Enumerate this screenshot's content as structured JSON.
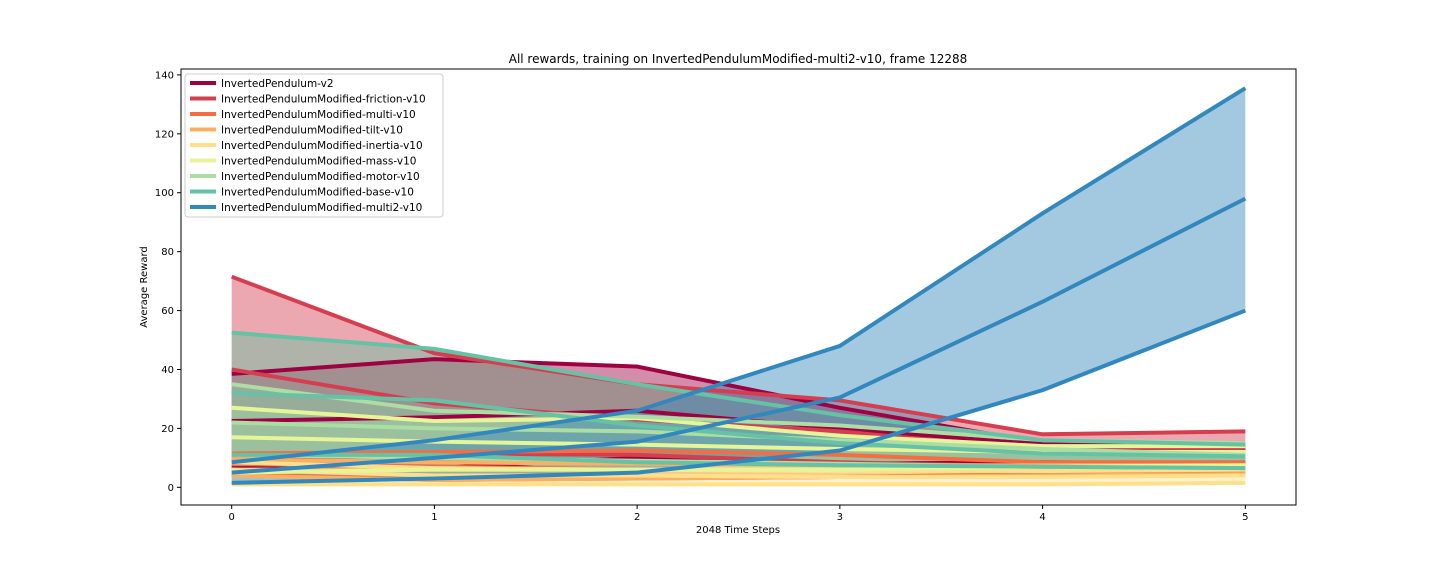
{
  "chart_data": {
    "type": "line",
    "title": "All rewards, training on InvertedPendulumModified-multi2-v10, frame 12288",
    "xlabel": "2048 Time Steps",
    "ylabel": "Average Reward",
    "x": [
      0,
      1,
      2,
      3,
      4,
      5
    ],
    "xlim": [
      -0.25,
      5.25
    ],
    "ylim": [
      -6,
      142
    ],
    "xticks": [
      "0",
      "1",
      "2",
      "3",
      "4",
      "5"
    ],
    "yticks": [
      "0",
      "20",
      "40",
      "60",
      "80",
      "100",
      "120",
      "140"
    ],
    "grid": false,
    "legend_position": "upper-left",
    "series": [
      {
        "name": "InvertedPendulum-v2",
        "color": "#9e0142",
        "mean": [
          22.5,
          23.8,
          26.0,
          20.0,
          14.5,
          13.5
        ],
        "upper": [
          38.5,
          43.5,
          41.0,
          27.0,
          15.0,
          14.0
        ],
        "lower": [
          6.5,
          6.5,
          10.0,
          8.0,
          8.5,
          8.0
        ]
      },
      {
        "name": "InvertedPendulumModified-friction-v10",
        "color": "#d53e4f",
        "mean": [
          40.0,
          28.5,
          23.0,
          19.0,
          12.5,
          13.0
        ],
        "upper": [
          71.5,
          45.5,
          35.0,
          29.5,
          18.0,
          19.0
        ],
        "lower": [
          8.5,
          11.5,
          11.0,
          8.5,
          7.0,
          6.5
        ]
      },
      {
        "name": "InvertedPendulumModified-multi-v10",
        "color": "#f46d43",
        "mean": [
          8.0,
          7.0,
          6.0,
          6.0,
          6.5,
          6.5
        ],
        "upper": [
          11.5,
          12.0,
          12.5,
          11.0,
          8.5,
          8.5
        ],
        "lower": [
          4.5,
          2.5,
          3.0,
          3.5,
          4.5,
          5.0
        ]
      },
      {
        "name": "InvertedPendulumModified-tilt-v10",
        "color": "#fdae61",
        "mean": [
          6.0,
          6.0,
          6.0,
          6.0,
          6.0,
          6.0
        ],
        "upper": [
          9.5,
          8.5,
          8.0,
          7.5,
          7.5,
          7.5
        ],
        "lower": [
          4.0,
          2.5,
          3.0,
          3.5,
          4.0,
          4.5
        ]
      },
      {
        "name": "InvertedPendulumModified-inertia-v10",
        "color": "#fee08b",
        "mean": [
          6.0,
          4.0,
          4.0,
          3.5,
          3.5,
          4.0
        ],
        "upper": [
          8.5,
          6.5,
          6.0,
          5.5,
          5.5,
          6.0
        ],
        "lower": [
          1.0,
          1.0,
          1.0,
          1.0,
          1.0,
          1.5
        ]
      },
      {
        "name": "InvertedPendulumModified-mass-v10",
        "color": "#e6f598",
        "mean": [
          17.0,
          15.5,
          14.5,
          13.0,
          12.0,
          12.0
        ],
        "upper": [
          27.0,
          22.5,
          23.5,
          17.5,
          14.0,
          14.0
        ],
        "lower": [
          5.0,
          6.0,
          6.0,
          6.0,
          7.0,
          7.5
        ]
      },
      {
        "name": "InvertedPendulumModified-motor-v10",
        "color": "#abdda4",
        "mean": [
          22.0,
          20.0,
          19.0,
          16.0,
          13.0,
          11.0
        ],
        "upper": [
          35.0,
          26.0,
          24.0,
          21.0,
          16.0,
          15.0
        ],
        "lower": [
          11.0,
          10.0,
          9.0,
          8.0,
          7.0,
          6.5
        ]
      },
      {
        "name": "InvertedPendulumModified-base-v10",
        "color": "#66c2a5",
        "mean": [
          32.0,
          29.5,
          21.0,
          15.0,
          11.5,
          10.5
        ],
        "upper": [
          52.5,
          47.0,
          35.0,
          24.5,
          16.0,
          14.5
        ],
        "lower": [
          11.0,
          11.0,
          8.5,
          7.5,
          7.0,
          6.5
        ]
      },
      {
        "name": "InvertedPendulumModified-multi2-v10",
        "color": "#3288bd",
        "mean": [
          5.0,
          10.0,
          15.5,
          30.5,
          63.0,
          98.0
        ],
        "upper": [
          8.5,
          16.0,
          26.0,
          48.0,
          93.0,
          135.5
        ],
        "lower": [
          1.5,
          3.0,
          5.0,
          12.5,
          33.0,
          60.0
        ]
      }
    ]
  }
}
